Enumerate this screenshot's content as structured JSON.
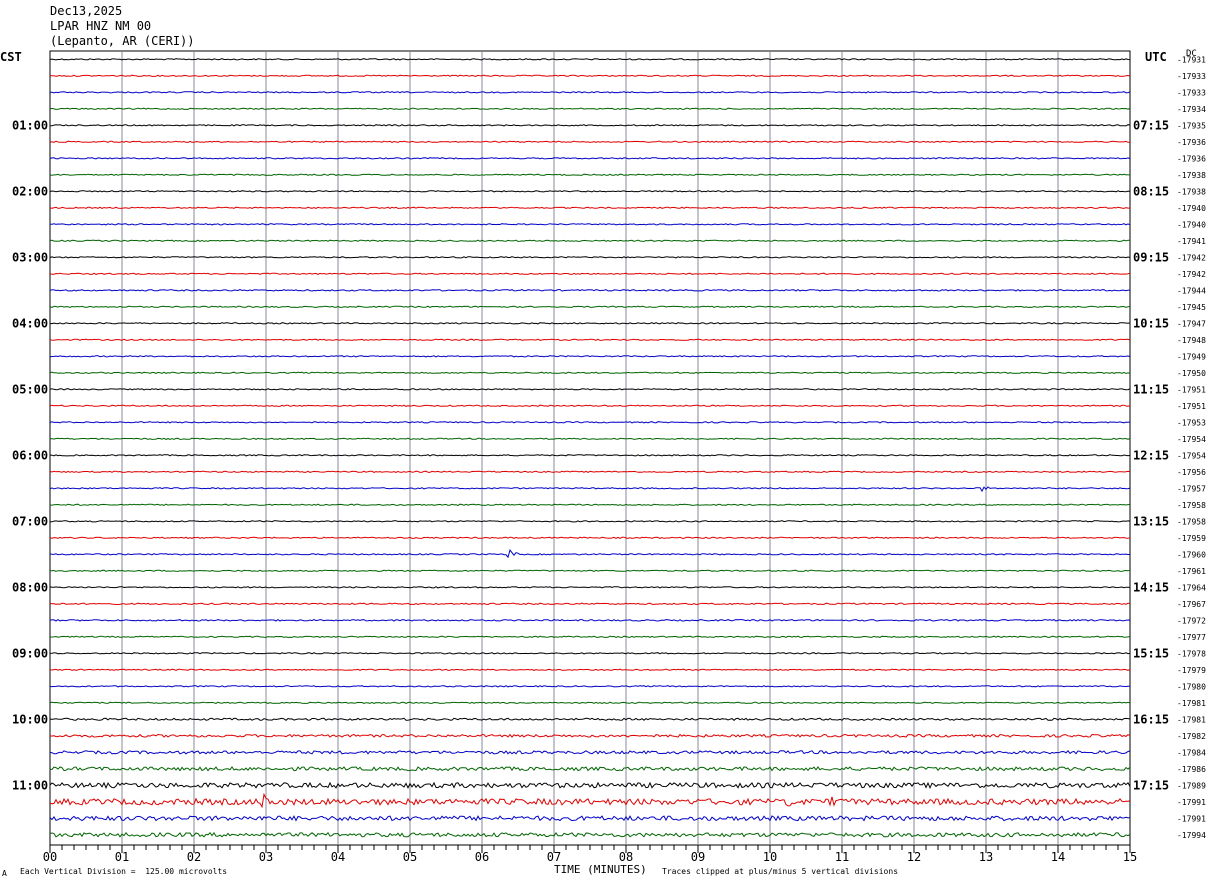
{
  "header": {
    "date": "Dec13,2025",
    "station": "LPAR HNZ NM 00",
    "location": "(Lepanto, AR (CERI))"
  },
  "axes": {
    "left_label": "CST",
    "right_label": "UTC",
    "right_unit": "DC",
    "x_title": "TIME (MINUTES)"
  },
  "footer": {
    "left_mark": "A",
    "scale_note": "Each Vertical Division =  125.00 microvolts",
    "clip_note": "Traces clipped at plus/minus 5 vertical divisions"
  },
  "chart_data": {
    "type": "line",
    "title": "LPAR HNZ NM 00 helicorder",
    "x_ticks": [
      "00",
      "01",
      "02",
      "03",
      "04",
      "05",
      "06",
      "07",
      "08",
      "09",
      "10",
      "11",
      "12",
      "13",
      "14",
      "15"
    ],
    "xlim": [
      0,
      15
    ],
    "x_unit": "minutes",
    "trace_colors": [
      "#000000",
      "#e00000",
      "#0000c8",
      "#006400"
    ],
    "cst_labels": [
      "",
      "01:00",
      "02:00",
      "03:00",
      "04:00",
      "05:00",
      "06:00",
      "07:00",
      "08:00",
      "09:00",
      "10:00",
      "11:00"
    ],
    "utc_labels": [
      "",
      "07:15",
      "08:15",
      "09:15",
      "10:15",
      "11:15",
      "12:15",
      "13:15",
      "14:15",
      "15:15",
      "16:15",
      "17:15"
    ],
    "dc_offsets": [
      -17931,
      -17933,
      -17933,
      -17934,
      -17935,
      -17936,
      -17936,
      -17938,
      -17938,
      -17940,
      -17940,
      -17941,
      -17942,
      -17942,
      -17944,
      -17945,
      -17947,
      -17948,
      -17949,
      -17950,
      -17951,
      -17951,
      -17953,
      -17954,
      -17954,
      -17956,
      -17957,
      -17958,
      -17958,
      -17959,
      -17960,
      -17961,
      -17964,
      -17967,
      -17972,
      -17977,
      -17978,
      -17979,
      -17980,
      -17981,
      -17981,
      -17982,
      -17984,
      -17986,
      -17989,
      -17991,
      -17991,
      -17994
    ],
    "noise_level": [
      0.6,
      0.6,
      0.6,
      0.6,
      0.6,
      0.6,
      0.6,
      0.6,
      0.6,
      0.6,
      0.6,
      0.6,
      0.6,
      0.6,
      0.7,
      0.6,
      0.6,
      0.6,
      0.6,
      0.6,
      0.6,
      0.6,
      0.6,
      0.6,
      0.6,
      0.6,
      0.6,
      0.6,
      0.6,
      0.6,
      0.6,
      0.6,
      0.6,
      0.7,
      0.7,
      0.6,
      0.6,
      0.6,
      0.6,
      0.6,
      1.0,
      1.3,
      1.5,
      1.8,
      2.5,
      3.0,
      2.3,
      2.0
    ],
    "events": [
      {
        "row": 26,
        "minute": 12.95,
        "amplitude": 5
      },
      {
        "row": 30,
        "minute": 6.38,
        "amplitude": 5
      },
      {
        "row": 45,
        "minute": 2.95,
        "amplitude": 8
      },
      {
        "row": 45,
        "minute": 10.25,
        "amplitude": 8
      },
      {
        "row": 45,
        "minute": 10.85,
        "amplitude": 6
      }
    ]
  }
}
